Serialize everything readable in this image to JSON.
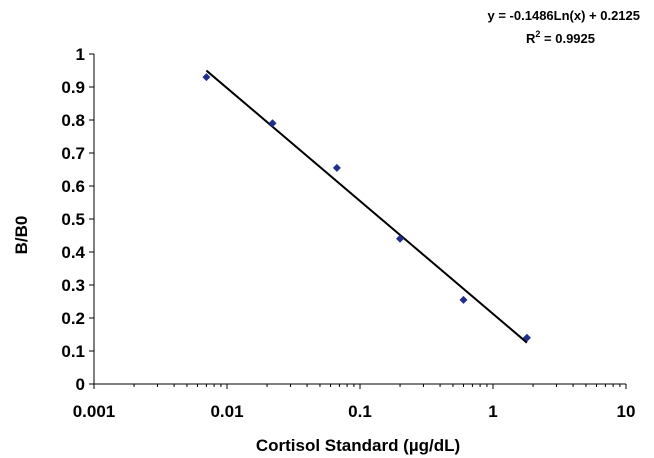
{
  "chart_data": {
    "type": "scatter",
    "x_scale": "log",
    "xlabel": "Cortisol Standard (µg/dL)",
    "ylabel": "B/B0",
    "xlim": [
      0.001,
      10
    ],
    "ylim": [
      0,
      1
    ],
    "x_ticks": [
      "0.001",
      "0.01",
      "0.1",
      "1",
      "10"
    ],
    "y_ticks": [
      "0",
      "0.1",
      "0.2",
      "0.3",
      "0.4",
      "0.5",
      "0.6",
      "0.7",
      "0.8",
      "0.9",
      "1"
    ],
    "series": [
      {
        "color": "#1f2f8a",
        "marker": "diamond",
        "points": [
          {
            "x": 0.007,
            "y": 0.93
          },
          {
            "x": 0.022,
            "y": 0.79
          },
          {
            "x": 0.067,
            "y": 0.655
          },
          {
            "x": 0.2,
            "y": 0.44
          },
          {
            "x": 0.6,
            "y": 0.255
          },
          {
            "x": 1.8,
            "y": 0.14
          }
        ]
      }
    ],
    "trendline": {
      "type": "logarithmic",
      "slope": -0.1486,
      "intercept": 0.2125,
      "x_range": [
        0.007,
        1.8
      ],
      "color": "#000000"
    },
    "equation": "y = -0.1486Ln(x) + 0.2125",
    "r_squared_prefix": "R",
    "r_squared_exponent": "2",
    "r_squared_suffix": " = 0.9925",
    "grid": false,
    "legend": "none"
  }
}
